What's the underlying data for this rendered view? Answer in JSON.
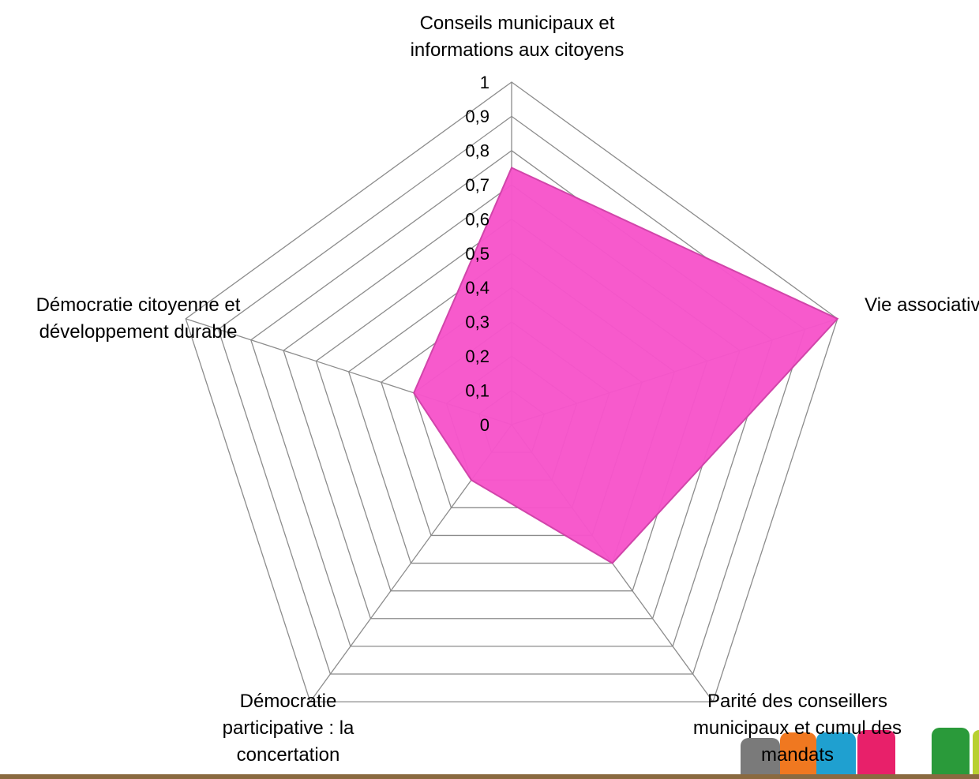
{
  "chart_data": {
    "type": "radar",
    "categories": [
      "Conseils municipaux et informations aux citoyens",
      "Vie associative",
      "Parité des conseillers municipaux et cumul des mandats",
      "Démocratie participative : la concertation",
      "Démocratie citoyenne et développement durable"
    ],
    "values": [
      0.75,
      1.0,
      0.5,
      0.2,
      0.3
    ],
    "color": "#f755cb",
    "ylim": [
      0,
      1
    ],
    "yticks": [
      0,
      {
        "value": 0.1,
        "label": "0,1"
      },
      {
        "value": 0.2,
        "label": "0,2"
      },
      {
        "value": 0.3,
        "label": "0,3"
      },
      {
        "value": 0.4,
        "label": "0,4"
      },
      {
        "value": 0.5,
        "label": "0,5"
      },
      {
        "value": 0.6,
        "label": "0,6"
      },
      {
        "value": 0.7,
        "label": "0,7"
      },
      {
        "value": 0.8,
        "label": "0,8"
      },
      {
        "value": 0.9,
        "label": "0,9"
      },
      1
    ],
    "grid": true
  }
}
